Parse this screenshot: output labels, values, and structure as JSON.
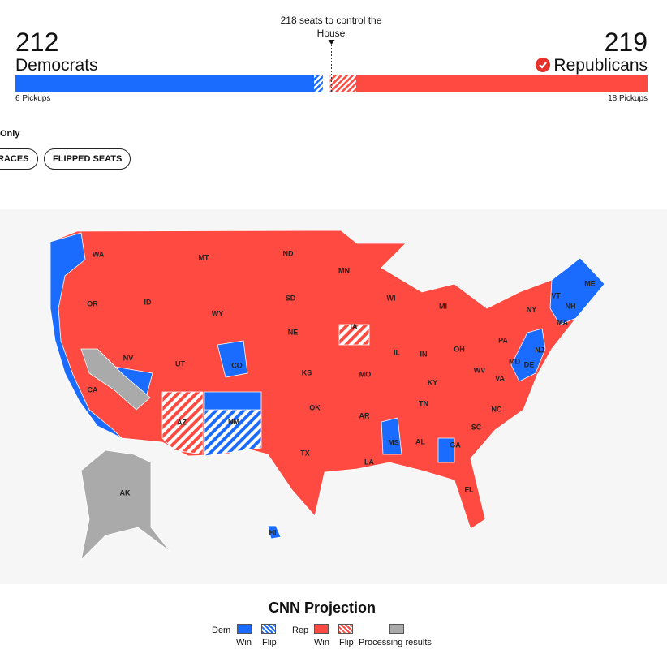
{
  "header": {
    "control_seats": 218,
    "control_label": "seats to control the House",
    "dem": {
      "seats": 212,
      "name": "Democrats",
      "pickups": 6,
      "pickups_label": "Pickups",
      "color": "#1a6bff"
    },
    "rep": {
      "seats": 219,
      "name": "Republicans",
      "pickups": 18,
      "pickups_label": "Pickups",
      "color": "#ff4a42"
    }
  },
  "filters": {
    "only": "Only",
    "buttons": [
      "RACES",
      "FLIPPED SEATS"
    ]
  },
  "map": {
    "state_labels": [
      "WA",
      "MT",
      "ND",
      "MN",
      "OR",
      "ID",
      "SD",
      "WI",
      "MI",
      "NY",
      "VT",
      "ME",
      "NH",
      "MA",
      "WY",
      "NE",
      "IA",
      "PA",
      "IL",
      "IN",
      "OH",
      "NJ",
      "MD",
      "DE",
      "NV",
      "UT",
      "CO",
      "KS",
      "MO",
      "WV",
      "VA",
      "KY",
      "CA",
      "OK",
      "TN",
      "NC",
      "AZ",
      "NM",
      "AR",
      "SC",
      "MS",
      "AL",
      "GA",
      "TX",
      "LA",
      "FL",
      "AK",
      "HI"
    ]
  },
  "legend": {
    "title": "CNN Projection",
    "dem": "Dem",
    "rep": "Rep",
    "win_dem": "Win",
    "flip_dem": "Flip",
    "win_rep": "Win",
    "flip_rep": "Flip",
    "processing": "Processing results"
  }
}
